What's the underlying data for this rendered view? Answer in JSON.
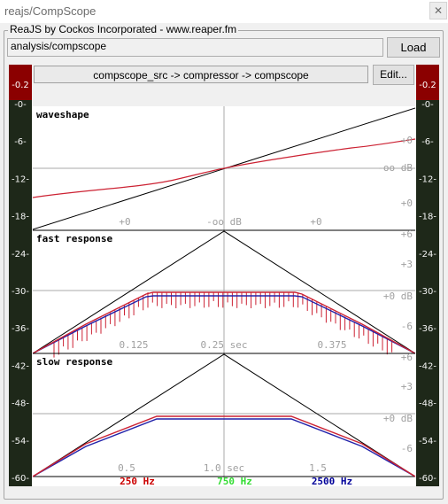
{
  "window": {
    "title": "reajs/CompScope",
    "close_glyph": "✕"
  },
  "group_label": "ReaJS by Cockos Incorporated - www.reaper.fm",
  "path_value": "analysis/compscope",
  "load_label": "Load",
  "chain_text": "compscope_src -> compressor -> compscope",
  "edit_label": "Edit...",
  "meters": {
    "peak_label": "-0.2",
    "peak_color": "#8b0000",
    "fill_color": "#1e2819",
    "tick_labels": [
      "-0-",
      "-6-",
      "-12-",
      "-18-",
      "-24-",
      "-30-",
      "-36-",
      "-42-",
      "-48-",
      "-54-",
      "-60-"
    ]
  },
  "panels": [
    {
      "title": "waveshape",
      "right_labels": [
        "+0",
        "-oo dB",
        "+0"
      ],
      "bottom_labels": [
        "+0",
        "-oo dB",
        "+0"
      ]
    },
    {
      "title": "fast response",
      "right_labels": [
        "+6",
        "+3",
        "+0 dB",
        "-6"
      ],
      "bottom_labels": [
        "0.125",
        "0.25 sec",
        "0.375"
      ]
    },
    {
      "title": "slow response",
      "right_labels": [
        "+6",
        "+3",
        "+0 dB",
        "-6"
      ],
      "bottom_labels": [
        "0.5",
        "1.0 sec",
        "1.5"
      ]
    }
  ],
  "legend": [
    {
      "label": "250 Hz",
      "color": "#cc0000"
    },
    {
      "label": "750 Hz",
      "color": "#33dd33"
    },
    {
      "label": "2500 Hz",
      "color": "#000099"
    }
  ],
  "colors": {
    "curve_red": "#cc2233",
    "curve_blue": "#2222aa",
    "grid": "#aaaaaa",
    "label_gray": "#a0a0a0"
  }
}
